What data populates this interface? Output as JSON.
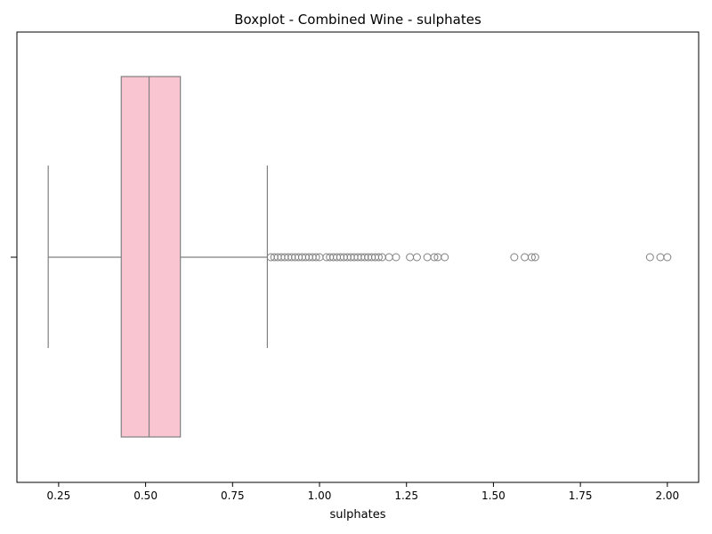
{
  "chart_data": {
    "type": "boxplot",
    "title": "Boxplot - Combined Wine - sulphates",
    "xlabel": "sulphates",
    "ylabel": "",
    "xlim": [
      0.13,
      2.09
    ],
    "x_ticks": [
      0.25,
      0.5,
      0.75,
      1.0,
      1.25,
      1.5,
      1.75,
      2.0
    ],
    "x_tick_labels": [
      "0.25",
      "0.50",
      "0.75",
      "1.00",
      "1.25",
      "1.50",
      "1.75",
      "2.00"
    ],
    "orientation": "horizontal",
    "grid": false,
    "legend": "none",
    "box": {
      "whisker_low": 0.22,
      "q1": 0.43,
      "median": 0.51,
      "q3": 0.6,
      "whisker_high": 0.85,
      "fill_color": "#f9c5d0",
      "line_color": "#808080"
    },
    "outliers": [
      0.86,
      0.87,
      0.88,
      0.89,
      0.9,
      0.91,
      0.92,
      0.93,
      0.94,
      0.95,
      0.96,
      0.97,
      0.98,
      0.99,
      1.0,
      1.02,
      1.03,
      1.04,
      1.05,
      1.06,
      1.07,
      1.08,
      1.09,
      1.1,
      1.11,
      1.12,
      1.13,
      1.14,
      1.15,
      1.16,
      1.17,
      1.18,
      1.2,
      1.22,
      1.26,
      1.28,
      1.31,
      1.33,
      1.34,
      1.36,
      1.56,
      1.59,
      1.61,
      1.62,
      1.95,
      1.98,
      2.0
    ]
  }
}
